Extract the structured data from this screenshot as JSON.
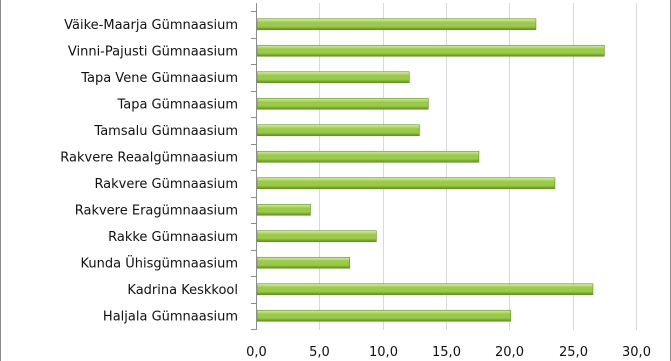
{
  "chart_data": {
    "type": "bar",
    "orientation": "horizontal",
    "categories": [
      "Väike-Maarja Gümnaasium",
      "Vinni-Pajusti Gümnaasium",
      "Tapa Vene Gümnaasium",
      "Tapa Gümnaasium",
      "Tamsalu Gümnaasium",
      "Rakvere Reaalgümnaasium",
      "Rakvere Gümnaasium",
      "Rakvere Eragümnaasium",
      "Rakke Gümnaasium",
      "Kunda Ühisgümnaasium",
      "Kadrina Keskkool",
      "Haljala Gümnaasium"
    ],
    "values": [
      22.1,
      27.5,
      12.1,
      13.6,
      12.9,
      17.6,
      23.6,
      4.3,
      9.5,
      7.4,
      26.6,
      20.1
    ],
    "xlim": [
      0,
      30
    ],
    "xticks": [
      "0,0",
      "5,0",
      "10,0",
      "15,0",
      "20,0",
      "25,0",
      "30,0"
    ],
    "grid": true,
    "legend": "none",
    "bar_color": "#9bc94a",
    "bar_color_dark": "#5f8f1e",
    "bar_color_light": "#d6efa6"
  }
}
